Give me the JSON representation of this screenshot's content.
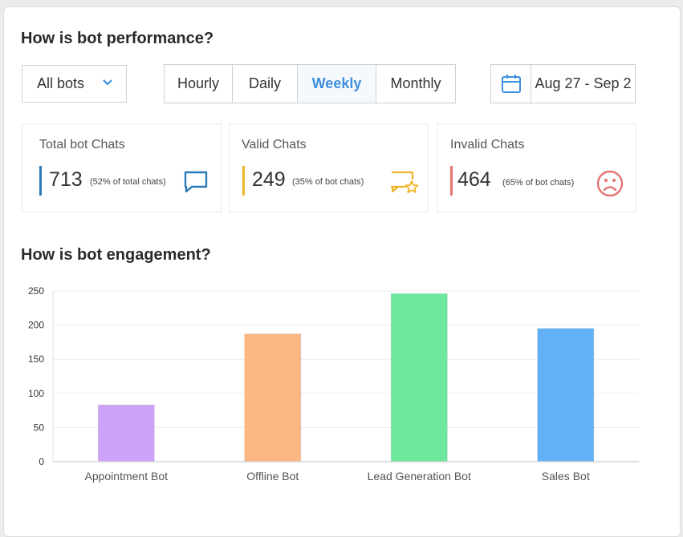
{
  "performance": {
    "heading": "How is bot performance?",
    "bot_filter": {
      "selected": "All bots"
    },
    "period_tabs": [
      {
        "label": "Hourly",
        "active": false
      },
      {
        "label": "Daily",
        "active": false
      },
      {
        "label": "Weekly",
        "active": true
      },
      {
        "label": "Monthly",
        "active": false
      }
    ],
    "date_range": "Aug 27 - Sep 2"
  },
  "stats": [
    {
      "title": "Total bot Chats",
      "value": "713",
      "note": "(52% of total chats)",
      "color": "#2a7bb8",
      "icon": "chat-bubble-icon"
    },
    {
      "title": "Valid Chats",
      "value": "249",
      "note": "(35% of bot chats)",
      "color": "#f0b429",
      "icon": "star-chat-icon"
    },
    {
      "title": "Invalid Chats",
      "value": "464",
      "note": "(65% of bot chats)",
      "color": "#e57373",
      "icon": "sad-face-icon"
    }
  ],
  "engagement": {
    "heading": "How is bot engagement?"
  },
  "chart_data": {
    "type": "bar",
    "categories": [
      "Appointment Bot",
      "Offline Bot",
      "Lead Generation Bot",
      "Sales Bot"
    ],
    "values": [
      83,
      187,
      246,
      195
    ],
    "colors": [
      "#cda3f8",
      "#fdb783",
      "#6fe79d",
      "#62b1f6"
    ],
    "ylim": [
      0,
      250
    ],
    "yticks": [
      0,
      50,
      100,
      150,
      200,
      250
    ],
    "grid": true
  }
}
